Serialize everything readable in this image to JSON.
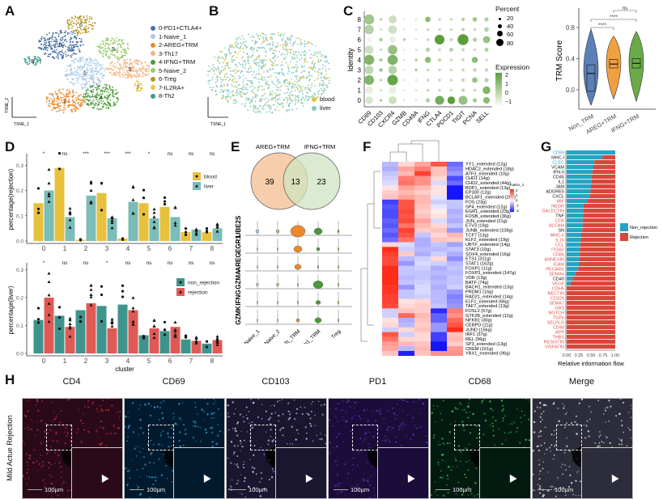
{
  "panels": {
    "A": {
      "label": "A",
      "xlabel": "TSNE_1",
      "ylabel": "TSNE_2",
      "clusters": [
        {
          "id": "0",
          "name": "0-PD1+CTLA4+",
          "color": "#4a6fa5"
        },
        {
          "id": "1",
          "name": "1-Naive_1",
          "color": "#a9c8e6"
        },
        {
          "id": "2",
          "name": "2-AREG+TRM",
          "color": "#e8892e"
        },
        {
          "id": "3",
          "name": "3-Th17",
          "color": "#f4b27d"
        },
        {
          "id": "4",
          "name": "4-IFNG+TRM",
          "color": "#4a9a38"
        },
        {
          "id": "5",
          "name": "5-Naive_2",
          "color": "#9ccc6e"
        },
        {
          "id": "6",
          "name": "6-Treg",
          "color": "#b8941e"
        },
        {
          "id": "7",
          "name": "7-IL2RA+",
          "color": "#eec64c"
        },
        {
          "id": "8",
          "name": "8-Th2",
          "color": "#3f9a8e"
        }
      ]
    },
    "B": {
      "label": "B",
      "xlabel": "TSNE_1",
      "ylabel": "TSNE_2",
      "groups": [
        {
          "name": "blood",
          "color": "#e6c537"
        },
        {
          "name": "liver",
          "color": "#84c8c4"
        }
      ]
    },
    "C": {
      "label": "C",
      "ylabel": "Identity",
      "size_legend_title": "Percent",
      "size_legend": [
        "20",
        "40",
        "60",
        "80"
      ],
      "color_legend_title": "Expression",
      "color_legend": [
        "2",
        "1",
        "0",
        "−1"
      ]
    },
    "violin": {
      "ylabel": "TRM Score",
      "yticks": [
        "0.0",
        "0.4",
        "0.8"
      ],
      "groups": [
        "Non_TRM",
        "AREG+TRM",
        "IFNG+TRM"
      ],
      "sig": [
        "****",
        "****",
        "ns"
      ]
    },
    "D": {
      "label": "D",
      "top_ylabel": "percentage(rejection)",
      "bottom_ylabel": "percentage(liver)",
      "xlabel": "cluster",
      "top_legend": [
        "blood",
        "liver"
      ],
      "bottom_legend": [
        "non_rejection",
        "rejection"
      ],
      "top_sig": [
        "*",
        "ns",
        "***",
        "***",
        "***",
        "*",
        "ns",
        "ns",
        "ns"
      ],
      "bottom_sig": [
        "*",
        "ns",
        "ns",
        "*",
        "ns",
        "ns",
        "ns",
        "ns",
        "ns"
      ]
    },
    "E": {
      "label": "E",
      "venn_left": "AREG+TRM",
      "venn_right": "IFNG+TRM",
      "venn_left_only": "39",
      "venn_overlap": "13",
      "venn_right_only": "23",
      "genes": [
        "UBE2S",
        "EGR1",
        "AREG",
        "GZMA",
        "IFNG",
        "GZMK"
      ],
      "groups": [
        "Naive_1",
        "Naive_2",
        "Tc_TRM",
        "Th1_TRM",
        "Treg"
      ]
    },
    "F": {
      "label": "F",
      "legend_title": "matrix_1",
      "legend_ticks": [
        "2",
        "1",
        "0",
        "-1",
        "-2"
      ],
      "columns": [
        "Treg",
        "Tc_TRM",
        "Th1_TRM",
        "Naive_1",
        "Naive_2"
      ],
      "rows": [
        "YY1_extended (12g)",
        "HDAC2_extended (18g)",
        "ATF3_extended (10g)",
        "CHD1 (14g)",
        "CHD2_extended (44g)",
        "BDP1_extended (13g)",
        "EP300 (12g)",
        "BCLAF1_extended (29g)",
        "FOS (23g)",
        "SP4_extended (12g)",
        "EGR1_extended (23g)",
        "FOSB_extended (36g)",
        "JUN_extended (21g)",
        "ETV3 (19g)",
        "JUNB_extended (108g)",
        "TCF7 (13g)",
        "KLF2_extended (19g)",
        "UBTF_extended (14g)",
        "STAT3 (10g)",
        "SOX4_extended (16g)",
        "ETS1 (311g)",
        "STAT1 (162g)",
        "FOXP1 (11g)",
        "FOXP3_extended (147g)",
        "VDR (13g)",
        "BATF (74g)",
        "BACH1_extended (13g)",
        "PRDM1 (16g)",
        "RAD21_extended (14g)",
        "ELF1_extended (66g)",
        "TAF7_extended (13g)",
        "FOSL2 (57g)",
        "GTF2B_extended (12g)",
        "NFKB1 (30g)",
        "CEBPD (11g)",
        "JUND (156g)",
        "IRF1 (37g)",
        "REL (96g)",
        "SP3_extended (13g)",
        "CREM (161g)",
        "YBX1_extended (96g)"
      ]
    },
    "G": {
      "label": "G",
      "legend": [
        "Non_rejection",
        "Rejection"
      ],
      "xticks": [
        "0.00",
        "0.25",
        "0.50",
        "0.75",
        "1.00"
      ],
      "xlabel": "Relative information flow"
    },
    "H": {
      "label": "H",
      "row_label": "Mild Actue Rejection",
      "scale_label": "100µm",
      "channels": [
        "CD4",
        "CD69",
        "CD103",
        "PD1",
        "CD68",
        "Merge"
      ]
    }
  },
  "chart_data": [
    {
      "type": "heatmap",
      "title": "C",
      "xlabel": "",
      "ylabel": "Identity",
      "x": [
        "CD69",
        "CD103",
        "CXCR4",
        "GZMB",
        "CD49A",
        "IFNG",
        "CTLA4",
        "PDCD1",
        "TIGIT",
        "PCNA",
        "SELL"
      ],
      "y": [
        "0",
        "1",
        "2",
        "3",
        "4",
        "5",
        "6",
        "7",
        "8"
      ],
      "percent": [
        [
          40,
          5,
          45,
          2,
          2,
          12,
          55,
          40,
          55,
          12,
          30
        ],
        [
          40,
          3,
          35,
          2,
          2,
          5,
          5,
          4,
          8,
          5,
          40
        ],
        [
          65,
          5,
          75,
          2,
          2,
          5,
          5,
          4,
          8,
          20,
          12
        ],
        [
          50,
          8,
          50,
          2,
          5,
          5,
          5,
          4,
          6,
          8,
          8
        ],
        [
          70,
          8,
          70,
          2,
          5,
          25,
          8,
          4,
          6,
          25,
          4
        ],
        [
          50,
          4,
          60,
          2,
          3,
          12,
          5,
          10,
          6,
          4,
          12
        ],
        [
          20,
          8,
          25,
          5,
          2,
          5,
          65,
          6,
          80,
          12,
          35
        ],
        [
          60,
          3,
          50,
          2,
          2,
          5,
          5,
          4,
          8,
          5,
          15
        ],
        [
          70,
          5,
          45,
          2,
          2,
          20,
          5,
          4,
          8,
          15,
          12
        ]
      ],
      "expression": [
        [
          -0.5,
          0.5,
          -0.3,
          0,
          0,
          0.3,
          1.5,
          2.5,
          0.8,
          0.5,
          1.0
        ],
        [
          -0.8,
          0,
          -0.8,
          0,
          0,
          0,
          0,
          0,
          0,
          0,
          1.2
        ],
        [
          1.2,
          0,
          1.8,
          0,
          0,
          0,
          0,
          0,
          0,
          0.8,
          0.2
        ],
        [
          0,
          0.8,
          0.2,
          0,
          0.5,
          0,
          0,
          0,
          0,
          0,
          0
        ],
        [
          1.2,
          0.3,
          1.3,
          0,
          0.5,
          1.0,
          0,
          0,
          0,
          1.0,
          0
        ],
        [
          -0.3,
          0,
          0.8,
          0,
          0,
          0.2,
          0,
          0.3,
          0,
          0,
          0.2
        ],
        [
          -1.0,
          0.5,
          -0.8,
          0.3,
          0,
          0,
          2.2,
          0,
          2.3,
          0.3,
          0.8
        ],
        [
          0.2,
          0,
          -0.3,
          0,
          0,
          0,
          0,
          0,
          0,
          0,
          0.2
        ],
        [
          0.6,
          0.2,
          -0.3,
          0,
          0,
          1.0,
          0,
          0,
          0.3,
          0.6,
          0.3
        ]
      ],
      "color_range": [
        -1,
        2
      ]
    },
    {
      "type": "violin",
      "title": "",
      "ylabel": "TRM Score",
      "categories": [
        "Non_TRM",
        "AREG+TRM",
        "IFNG+TRM"
      ],
      "medians": [
        0.21,
        0.33,
        0.34
      ],
      "q1": [
        -0.02,
        0.28,
        0.28
      ],
      "q3": [
        0.32,
        0.39,
        0.4
      ],
      "min": [
        -0.2,
        -0.12,
        -0.15
      ],
      "max": [
        0.78,
        0.69,
        0.75
      ],
      "colors": [
        "#5b80b8",
        "#f0a040",
        "#6aaa48"
      ],
      "ylim": [
        -0.25,
        1.05
      ],
      "comparisons": [
        {
          "a": "Non_TRM",
          "b": "AREG+TRM",
          "label": "****"
        },
        {
          "a": "Non_TRM",
          "b": "IFNG+TRM",
          "label": "****"
        },
        {
          "a": "AREG+TRM",
          "b": "IFNG+TRM",
          "label": "ns"
        }
      ]
    },
    {
      "type": "bar",
      "title": "D-top",
      "xlabel": "",
      "ylabel": "percentage(rejection)",
      "categories": [
        "0",
        "1",
        "2",
        "3",
        "4",
        "5",
        "6",
        "7",
        "8"
      ],
      "series": [
        {
          "name": "blood",
          "color": "#e8c13c",
          "values": [
            0.15,
            0.29,
            0.005,
            0.19,
            0.01,
            0.15,
            0.135,
            0.035,
            0.035
          ]
        },
        {
          "name": "liver",
          "color": "#7bbdb8",
          "values": [
            0.2,
            0.095,
            0.18,
            0.09,
            0.155,
            0.09,
            0.095,
            0.045,
            0.05
          ]
        }
      ],
      "ylim": [
        0,
        0.33
      ],
      "yticks": [
        0.0,
        0.1,
        0.2,
        0.3
      ],
      "significance": [
        "*",
        "ns",
        "***",
        "***",
        "***",
        "*",
        "ns",
        "ns",
        "ns"
      ]
    },
    {
      "type": "bar",
      "title": "D-bottom",
      "xlabel": "cluster",
      "ylabel": "percentage(liver)",
      "categories": [
        "0",
        "1",
        "2",
        "3",
        "4",
        "5",
        "6",
        "7",
        "8"
      ],
      "series": [
        {
          "name": "non_rejection",
          "color": "#3e948c",
          "values": [
            0.12,
            0.135,
            0.155,
            0.17,
            0.175,
            0.065,
            0.08,
            0.05,
            0.035
          ]
        },
        {
          "name": "rejection",
          "color": "#e05a55",
          "values": [
            0.2,
            0.095,
            0.18,
            0.09,
            0.155,
            0.09,
            0.095,
            0.045,
            0.048
          ]
        }
      ],
      "ylim": [
        0,
        0.31
      ],
      "yticks": [
        0.0,
        0.1,
        0.2,
        0.3
      ],
      "significance": [
        "*",
        "ns",
        "ns",
        "*",
        "ns",
        "ns",
        "ns",
        "ns",
        "ns"
      ]
    },
    {
      "type": "heatmap",
      "title": "F",
      "x": [
        "Treg",
        "Tc_TRM",
        "Th1_TRM",
        "Naive_1",
        "Naive_2"
      ],
      "values": [
        [
          -0.5,
          0.3,
          0.8,
          1.6,
          -1.2
        ],
        [
          -0.6,
          0.8,
          1.2,
          0.5,
          -1.0
        ],
        [
          -0.4,
          0.6,
          1.8,
          0.5,
          -0.8
        ],
        [
          -0.3,
          1.2,
          1.0,
          0.3,
          -1.5
        ],
        [
          -0.2,
          1.3,
          1.0,
          -0.2,
          -1.2
        ],
        [
          0.2,
          0.8,
          0.6,
          0.2,
          -2.2
        ],
        [
          0.4,
          0.6,
          0.4,
          0.2,
          -2.3
        ],
        [
          0.5,
          0.8,
          0.6,
          -0.1,
          -2.0
        ],
        [
          -1.6,
          1.6,
          0.6,
          -0.3,
          -0.4
        ],
        [
          -1.4,
          1.6,
          0.5,
          -0.1,
          -0.4
        ],
        [
          -1.5,
          1.7,
          0.4,
          0.1,
          -0.6
        ],
        [
          -1.5,
          1.6,
          0.5,
          0.2,
          -0.5
        ],
        [
          -1.3,
          1.7,
          0.8,
          -0.2,
          -0.6
        ],
        [
          -1.4,
          1.3,
          0.6,
          0.3,
          -0.4
        ],
        [
          -1.2,
          1.8,
          0.4,
          0.5,
          -0.8
        ],
        [
          -1.4,
          1.6,
          -0.4,
          0.3,
          0.6
        ],
        [
          -1.2,
          1.3,
          -0.6,
          0.5,
          0.4
        ],
        [
          0.3,
          -0.2,
          -0.6,
          -0.4,
          -0.7
        ],
        [
          2.0,
          -0.3,
          -0.5,
          -0.5,
          -0.4
        ],
        [
          1.8,
          0.4,
          -0.6,
          -0.3,
          -0.6
        ],
        [
          1.7,
          -0.5,
          -0.3,
          0.3,
          -0.9
        ],
        [
          1.7,
          -0.8,
          -0.2,
          -0.3,
          -0.5
        ],
        [
          2.0,
          -0.4,
          -0.3,
          -0.6,
          -0.4
        ],
        [
          2.1,
          -0.4,
          -0.4,
          -0.5,
          -0.5
        ],
        [
          2.1,
          -0.5,
          -0.4,
          -0.6,
          -0.4
        ],
        [
          2.1,
          -0.4,
          -0.3,
          -0.5,
          -0.4
        ],
        [
          1.9,
          -0.8,
          -0.2,
          -0.6,
          -0.3
        ],
        [
          1.9,
          -0.4,
          -0.2,
          -0.5,
          -0.8
        ],
        [
          1.8,
          -0.4,
          -0.3,
          -0.5,
          -1.0
        ],
        [
          1.8,
          0.2,
          0.3,
          -0.5,
          -0.9
        ],
        [
          1.7,
          0.3,
          0.4,
          -0.4,
          -0.8
        ],
        [
          -0.3,
          0.5,
          0.4,
          -1.8,
          1.2
        ],
        [
          -0.3,
          1.4,
          0.6,
          -1.3,
          1.0
        ],
        [
          0.2,
          -0.6,
          0.5,
          -1.3,
          1.4
        ],
        [
          0.3,
          -0.5,
          0.4,
          -0.8,
          1.6
        ],
        [
          -0.3,
          0.3,
          0.5,
          -0.8,
          2.2
        ],
        [
          1.6,
          -0.3,
          0.3,
          -1.6,
          0.5
        ],
        [
          1.3,
          0.3,
          0.3,
          -1.6,
          0.6
        ],
        [
          0.9,
          0.6,
          0.5,
          -2.2,
          0.4
        ],
        [
          0.8,
          -0.5,
          0.6,
          -2.1,
          0.9
        ],
        [
          0.5,
          -1.9,
          0.5,
          1.0,
          1.0
        ]
      ],
      "color_range": [
        -2,
        2
      ]
    },
    {
      "type": "bar",
      "title": "G",
      "orientation": "horizontal-stacked",
      "xlabel": "Relative information flow",
      "xlim": [
        0,
        1
      ],
      "categories": [
        "CD99",
        "MHC-I",
        "CLEC",
        "VCAM",
        "IFN-II",
        "CD45",
        "IL1",
        "JAM",
        "ADGRE5",
        "CXCL",
        "MIF",
        "NEGR",
        "GALECTIN",
        "TNF",
        "CD6",
        "ALCAM",
        "SN",
        "MHC-II",
        "IL16",
        "CCL",
        "ITGB2",
        "CD86",
        "ANNEXIN",
        "ICAM",
        "PECAM1",
        "SEMA4",
        "CD40",
        "VEGF",
        "CDH5",
        "NECTIN",
        "CD226",
        "SEMA7",
        "GAS",
        "NOTCH",
        "TGFb",
        "SELPLG",
        "CD48",
        "APP",
        "THBS",
        "RESISTIN",
        "VISFATIN"
      ],
      "label_colors": [
        "#2aa7c4",
        "#111111",
        "#2aa7c4",
        "#111111",
        "#111111",
        "#111111",
        "#111111",
        "#111111",
        "#111111",
        "#111111",
        "#d9534f",
        "#d9534f",
        "#d9534f",
        "#111111",
        "#d9534f",
        "#d9534f",
        "#111111",
        "#d9534f",
        "#d9534f",
        "#d9534f",
        "#d9534f",
        "#d9534f",
        "#d9534f",
        "#d9534f",
        "#d9534f",
        "#d9534f",
        "#111111",
        "#d9534f",
        "#d9534f",
        "#d9534f",
        "#d9534f",
        "#d9534f",
        "#d9534f",
        "#d9534f",
        "#d9534f",
        "#d9534f",
        "#d9534f",
        "#d9534f",
        "#d9534f",
        "#d9534f",
        "#d9534f"
      ],
      "series": [
        {
          "name": "Non_rejection",
          "color": "#26a4c2",
          "values": [
            1.0,
            0.74,
            0.57,
            0.55,
            0.53,
            0.51,
            0.51,
            0.5,
            0.49,
            0.47,
            0.42,
            0.35,
            0.34,
            0.34,
            0.33,
            0.33,
            0.32,
            0.3,
            0.29,
            0.28,
            0.27,
            0.27,
            0.26,
            0.25,
            0.24,
            0.18,
            0.12,
            0.08,
            0,
            0,
            0,
            0,
            0,
            0,
            0,
            0,
            0,
            0,
            0,
            0,
            0
          ]
        },
        {
          "name": "Rejection",
          "color": "#d9473b",
          "values": [
            0.0,
            0.26,
            0.43,
            0.45,
            0.47,
            0.49,
            0.49,
            0.5,
            0.51,
            0.53,
            0.58,
            0.65,
            0.66,
            0.66,
            0.67,
            0.67,
            0.68,
            0.7,
            0.71,
            0.72,
            0.73,
            0.73,
            0.74,
            0.75,
            0.76,
            0.82,
            0.88,
            0.92,
            1,
            1,
            1,
            1,
            1,
            1,
            1,
            1,
            1,
            1,
            1,
            1,
            1
          ]
        }
      ]
    }
  ]
}
